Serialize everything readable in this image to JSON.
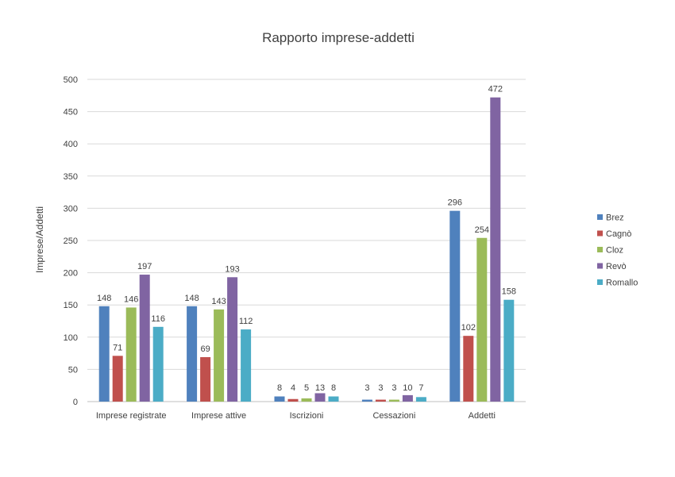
{
  "chart_data": {
    "type": "bar",
    "title": "Rapporto imprese-addetti",
    "xlabel": "",
    "ylabel": "Imprese/Addetti",
    "ylim": [
      0,
      500
    ],
    "yticks": [
      0,
      50,
      100,
      150,
      200,
      250,
      300,
      350,
      400,
      450,
      500
    ],
    "grid": true,
    "legend_position": "right",
    "categories": [
      "Imprese registrate",
      "Imprese attive",
      "Iscrizioni",
      "Cessazioni",
      "Addetti"
    ],
    "series": [
      {
        "name": "Brez",
        "color": "#4f81bd",
        "values": [
          148,
          148,
          8,
          3,
          296
        ]
      },
      {
        "name": "Cagnò",
        "color": "#c0504d",
        "values": [
          71,
          69,
          4,
          3,
          102
        ]
      },
      {
        "name": "Cloz",
        "color": "#9bbb59",
        "values": [
          146,
          143,
          5,
          3,
          254
        ]
      },
      {
        "name": "Revò",
        "color": "#8064a2",
        "values": [
          197,
          193,
          13,
          10,
          472
        ]
      },
      {
        "name": "Romallo",
        "color": "#4bacc6",
        "values": [
          116,
          112,
          8,
          7,
          158
        ]
      }
    ]
  }
}
